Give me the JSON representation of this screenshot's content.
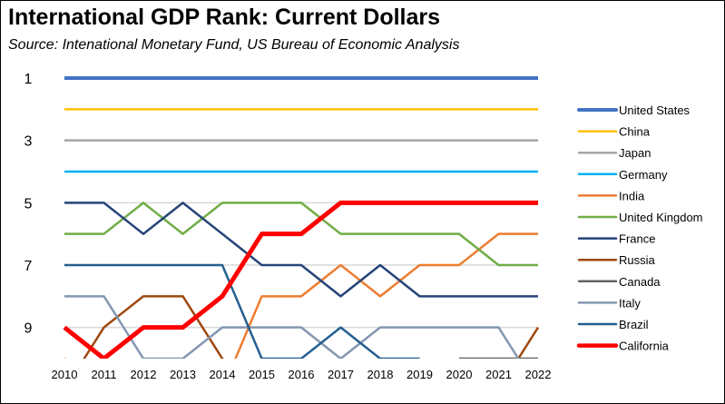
{
  "chart_data": {
    "type": "line",
    "title": "International GDP Rank:  Current Dollars",
    "subtitle": "Source:  Intenational Monetary Fund, US Bureau of Economic Analysis",
    "xlabel": "",
    "ylabel": "",
    "x": [
      2010,
      2011,
      2012,
      2013,
      2014,
      2015,
      2016,
      2017,
      2018,
      2019,
      2020,
      2021,
      2022
    ],
    "ylim": [
      1,
      10
    ],
    "y_inverted": true,
    "yticks": [
      1,
      3,
      5,
      7,
      9
    ],
    "grid": true,
    "legend": "right",
    "series": [
      {
        "name": "United States",
        "color": "#4472C4",
        "width": 4,
        "values": [
          1,
          1,
          1,
          1,
          1,
          1,
          1,
          1,
          1,
          1,
          1,
          1,
          1
        ]
      },
      {
        "name": "China",
        "color": "#FFC000",
        "width": 2.5,
        "values": [
          2,
          2,
          2,
          2,
          2,
          2,
          2,
          2,
          2,
          2,
          2,
          2,
          2
        ]
      },
      {
        "name": "Japan",
        "color": "#A5A5A5",
        "width": 2.5,
        "values": [
          3,
          3,
          3,
          3,
          3,
          3,
          3,
          3,
          3,
          3,
          3,
          3,
          3
        ]
      },
      {
        "name": "Germany",
        "color": "#00B0F0",
        "width": 2.5,
        "values": [
          4,
          4,
          4,
          4,
          4,
          4,
          4,
          4,
          4,
          4,
          4,
          4,
          4
        ]
      },
      {
        "name": "India",
        "color": "#ED7D31",
        "width": 2.5,
        "values": [
          10,
          11,
          11,
          11,
          11,
          8,
          8,
          7,
          8,
          7,
          7,
          6,
          6
        ]
      },
      {
        "name": "United Kingdom",
        "color": "#70AD47",
        "width": 2.5,
        "values": [
          6,
          6,
          5,
          6,
          5,
          5,
          5,
          6,
          6,
          6,
          6,
          7,
          7
        ]
      },
      {
        "name": "France",
        "color": "#264478",
        "width": 2.5,
        "values": [
          5,
          5,
          6,
          5,
          6,
          7,
          7,
          8,
          7,
          8,
          8,
          8,
          8
        ]
      },
      {
        "name": "Russia",
        "color": "#9E480E",
        "width": 2.5,
        "values": [
          11,
          9,
          8,
          8,
          10,
          11,
          11,
          11,
          11,
          11,
          11,
          11,
          9
        ]
      },
      {
        "name": "Canada",
        "color": "#636363",
        "width": 2.5,
        "values": [
          null,
          null,
          null,
          null,
          null,
          null,
          null,
          null,
          null,
          null,
          10,
          10,
          10
        ]
      },
      {
        "name": "Italy",
        "color": "#8497B0",
        "width": 2.5,
        "values": [
          8,
          8,
          10,
          10,
          9,
          9,
          9,
          10,
          9,
          9,
          9,
          9,
          11
        ]
      },
      {
        "name": "Brazil",
        "color": "#255E91",
        "width": 2.5,
        "values": [
          7,
          7,
          7,
          7,
          7,
          10,
          10,
          9,
          10,
          10,
          null,
          null,
          null
        ]
      },
      {
        "name": "California",
        "color": "#FF0000",
        "width": 5,
        "values": [
          9,
          10,
          9,
          9,
          8,
          6,
          6,
          5,
          5,
          5,
          5,
          5,
          5
        ]
      }
    ]
  }
}
